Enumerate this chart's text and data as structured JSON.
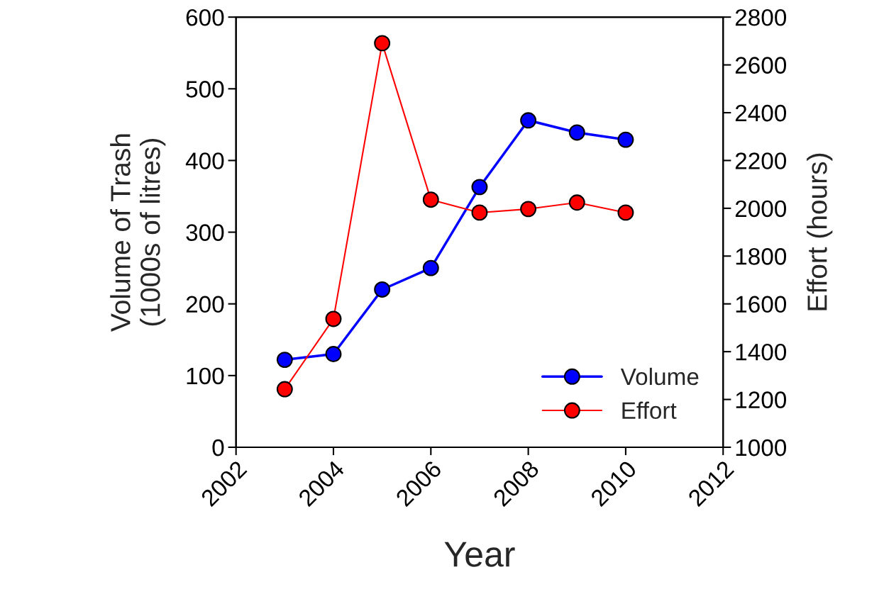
{
  "chart_data": {
    "type": "line",
    "xlabel": "Year",
    "ylabel": "Volume of Trash\n(1000s of litres)",
    "y2label": "Effort (hours)",
    "x": [
      2003,
      2004,
      2005,
      2006,
      2007,
      2008,
      2009,
      2010
    ],
    "series": [
      {
        "name": "Volume",
        "color": "#0000ff",
        "values": [
          122,
          130,
          220,
          250,
          363,
          456,
          439,
          429
        ]
      },
      {
        "name": "Effort",
        "color": "#ff0000",
        "axis": "y2",
        "values": [
          1243,
          1537,
          2691,
          2036,
          1982,
          1997,
          2024,
          1982
        ]
      }
    ],
    "xlim": [
      2002,
      2012
    ],
    "xticks": [
      2002,
      2004,
      2006,
      2008,
      2010,
      2012
    ],
    "ylim": [
      0,
      600
    ],
    "yticks": [
      0,
      100,
      200,
      300,
      400,
      500,
      600
    ],
    "y2lim": [
      1000,
      2800
    ],
    "y2ticks": [
      1000,
      1200,
      1400,
      1600,
      1800,
      2000,
      2200,
      2400,
      2600,
      2800
    ],
    "marker": "circle",
    "line_style": "solid",
    "legend": "bottom right",
    "grid": false
  }
}
